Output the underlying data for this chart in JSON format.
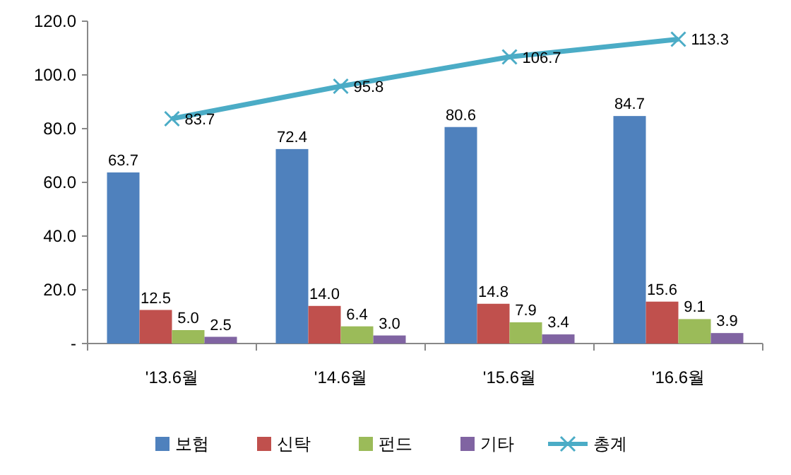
{
  "chart_data": {
    "type": "bar",
    "categories": [
      "'13.6월",
      "'14.6월",
      "'15.6월",
      "'16.6월"
    ],
    "series": [
      {
        "name": "보험",
        "color": "#4f81bd",
        "values": [
          63.7,
          72.4,
          80.6,
          84.7
        ],
        "value_labels": [
          "63.7",
          "72.4",
          "80.6",
          "84.7"
        ]
      },
      {
        "name": "신탁",
        "color": "#c0504d",
        "values": [
          12.5,
          14.0,
          14.8,
          15.6
        ],
        "value_labels": [
          "12.5",
          "14.0",
          "14.8",
          "15.6"
        ]
      },
      {
        "name": "펀드",
        "color": "#9bbb59",
        "values": [
          5.0,
          6.4,
          7.9,
          9.1
        ],
        "value_labels": [
          "5.0",
          "6.4",
          "7.9",
          "9.1"
        ]
      },
      {
        "name": "기타",
        "color": "#8064a2",
        "values": [
          2.5,
          3.0,
          3.4,
          3.9
        ],
        "value_labels": [
          "2.5",
          "3.0",
          "3.4",
          "3.9"
        ]
      },
      {
        "name": "총계",
        "type": "line",
        "color": "#4bacc6",
        "values": [
          83.7,
          95.8,
          106.7,
          113.3
        ],
        "value_labels": [
          "83.7",
          "95.8",
          "106.7",
          "113.3"
        ],
        "marker": "cross"
      }
    ],
    "ylim": [
      0,
      120
    ],
    "yticks": [
      {
        "value": 0,
        "label": "-"
      },
      {
        "value": 20,
        "label": "20.0"
      },
      {
        "value": 40,
        "label": "40.0"
      },
      {
        "value": 60,
        "label": "60.0"
      },
      {
        "value": 80,
        "label": "80.0"
      },
      {
        "value": 100,
        "label": "100.0"
      },
      {
        "value": 120,
        "label": "120.0"
      }
    ],
    "legend": "bottom"
  }
}
